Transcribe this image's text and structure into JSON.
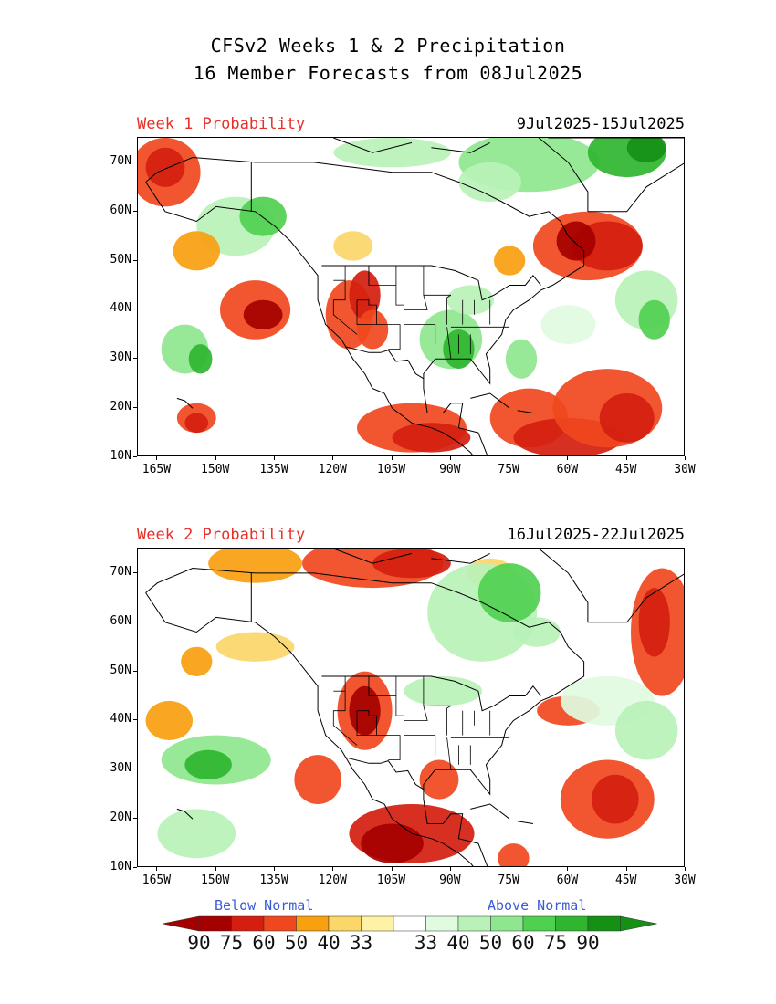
{
  "header": {
    "line1": "CFSv2 Weeks 1 & 2 Precipitation",
    "line2": "16 Member Forecasts from 08Jul2025"
  },
  "panels": [
    {
      "label": "Week 1 Probability",
      "dates": "9Jul2025-15Jul2025"
    },
    {
      "label": "Week 2 Probability",
      "dates": "16Jul2025-22Jul2025"
    }
  ],
  "axes": {
    "lat_ticks": [
      "70N",
      "60N",
      "50N",
      "40N",
      "30N",
      "20N",
      "10N"
    ],
    "lon_ticks": [
      "165W",
      "150W",
      "135W",
      "120W",
      "105W",
      "90W",
      "75W",
      "60W",
      "45W",
      "30W"
    ],
    "lon_range": [
      -170,
      -30
    ],
    "lat_range": [
      10,
      75
    ]
  },
  "colorbar": {
    "below_label": "Below Normal",
    "above_label": "Above Normal",
    "numbers": [
      "90",
      "75",
      "60",
      "50",
      "40",
      "33",
      "33",
      "40",
      "50",
      "60",
      "75",
      "90"
    ],
    "colors": {
      "below_90": "#a50000",
      "below_75": "#d41e10",
      "below_60": "#f0481e",
      "below_50": "#f8a010",
      "below_40": "#fbd76a",
      "below_33": "#fdf2a6",
      "normal": "#ffffff",
      "above_33": "#e1fbe1",
      "above_40": "#b8f2b8",
      "above_50": "#8ee68e",
      "above_60": "#50d050",
      "above_75": "#2fb52f",
      "above_90": "#159015"
    }
  }
}
